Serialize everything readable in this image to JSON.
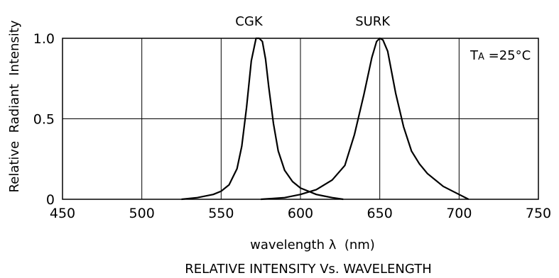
{
  "chart_data": {
    "type": "line",
    "title": "RELATIVE INTENSITY Vs. WAVELENGTH",
    "xlabel": "wavelength λ  (nm)",
    "ylabel": "Relative  Radiant  Intensity",
    "xlim": [
      450,
      750
    ],
    "ylim": [
      0,
      1.0
    ],
    "x_ticks": [
      "450",
      "500",
      "550",
      "600",
      "650",
      "700",
      "750"
    ],
    "y_ticks": [
      "0",
      "0.5",
      "1.0"
    ],
    "grid": true,
    "annotation": {
      "main": "T",
      "sub": "A",
      "rest": " =25°C"
    },
    "series": [
      {
        "name": "CGK",
        "peak_label": "CGK",
        "x": [
          525,
          535,
          545,
          550,
          555,
          560,
          563,
          566,
          569,
          572,
          574,
          576,
          578,
          580,
          583,
          586,
          590,
          595,
          600,
          605,
          610,
          615,
          620,
          627
        ],
        "values": [
          0.0,
          0.01,
          0.03,
          0.05,
          0.09,
          0.19,
          0.33,
          0.57,
          0.86,
          1.0,
          1.0,
          0.98,
          0.87,
          0.7,
          0.47,
          0.3,
          0.18,
          0.11,
          0.07,
          0.05,
          0.03,
          0.02,
          0.01,
          0.0
        ]
      },
      {
        "name": "SURK",
        "peak_label": "SURK",
        "x": [
          575,
          590,
          600,
          610,
          620,
          628,
          634,
          640,
          645,
          648,
          650,
          652,
          655,
          660,
          665,
          670,
          675,
          680,
          690,
          700,
          706
        ],
        "values": [
          0.0,
          0.01,
          0.03,
          0.06,
          0.12,
          0.21,
          0.4,
          0.65,
          0.88,
          0.98,
          1.0,
          0.99,
          0.92,
          0.66,
          0.45,
          0.3,
          0.22,
          0.16,
          0.08,
          0.03,
          0.0
        ]
      }
    ]
  }
}
